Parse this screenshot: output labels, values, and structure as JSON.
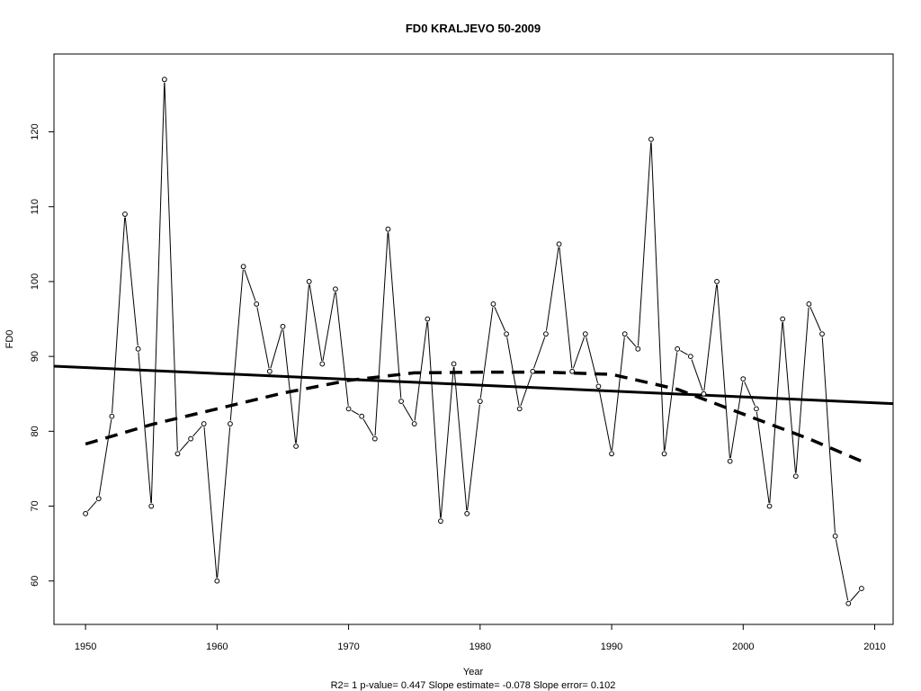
{
  "chart_data": {
    "type": "line",
    "title": "FD0   KRALJEVO 50-2009",
    "xlabel": "Year",
    "ylabel": "FD0",
    "footer": "R2= 1  p-value= 0.447  Slope estimate= -0.078  Slope error= 0.102",
    "xlim": [
      1947.6,
      2011.4
    ],
    "ylim": [
      54.2,
      130.4
    ],
    "x_ticks": [
      1950,
      1960,
      1970,
      1980,
      1990,
      2000,
      2010
    ],
    "y_ticks": [
      60,
      70,
      80,
      90,
      100,
      110,
      120
    ],
    "grid": false,
    "series": [
      {
        "style": "line-points",
        "x": [
          1950,
          1951,
          1952,
          1953,
          1954,
          1955,
          1956,
          1957,
          1958,
          1959,
          1960,
          1961,
          1962,
          1963,
          1964,
          1965,
          1966,
          1967,
          1968,
          1969,
          1970,
          1971,
          1972,
          1973,
          1974,
          1975,
          1976,
          1977,
          1978,
          1979,
          1980,
          1981,
          1982,
          1983,
          1984,
          1985,
          1986,
          1987,
          1988,
          1989,
          1990,
          1991,
          1992,
          1993,
          1994,
          1995,
          1996,
          1997,
          1998,
          1999,
          2000,
          2001,
          2002,
          2003,
          2004,
          2005,
          2006,
          2007,
          2008,
          2009
        ],
        "values": [
          69,
          71,
          82,
          109,
          91,
          70,
          127,
          77,
          79,
          81,
          60,
          81,
          102,
          97,
          88,
          94,
          78,
          100,
          89,
          99,
          83,
          82,
          79,
          107,
          84,
          81,
          95,
          68,
          89,
          69,
          84,
          97,
          93,
          83,
          88,
          93,
          105,
          88,
          93,
          86,
          77,
          93,
          91,
          119,
          77,
          91,
          90,
          85,
          100,
          76,
          87,
          83,
          70,
          95,
          74,
          97,
          93,
          66,
          57,
          59
        ]
      },
      {
        "style": "solid-trend",
        "x": [
          1947.6,
          2011.4
        ],
        "values": [
          88.7,
          83.7
        ]
      },
      {
        "style": "dashed-smooth",
        "x": [
          1950,
          1955,
          1960,
          1965,
          1970,
          1975,
          1980,
          1985,
          1990,
          1995,
          2000,
          2005,
          2009
        ],
        "values": [
          78.3,
          80.9,
          83.0,
          85.1,
          86.8,
          87.8,
          87.9,
          87.9,
          87.6,
          85.6,
          82.3,
          79.0,
          76.0
        ]
      }
    ]
  }
}
